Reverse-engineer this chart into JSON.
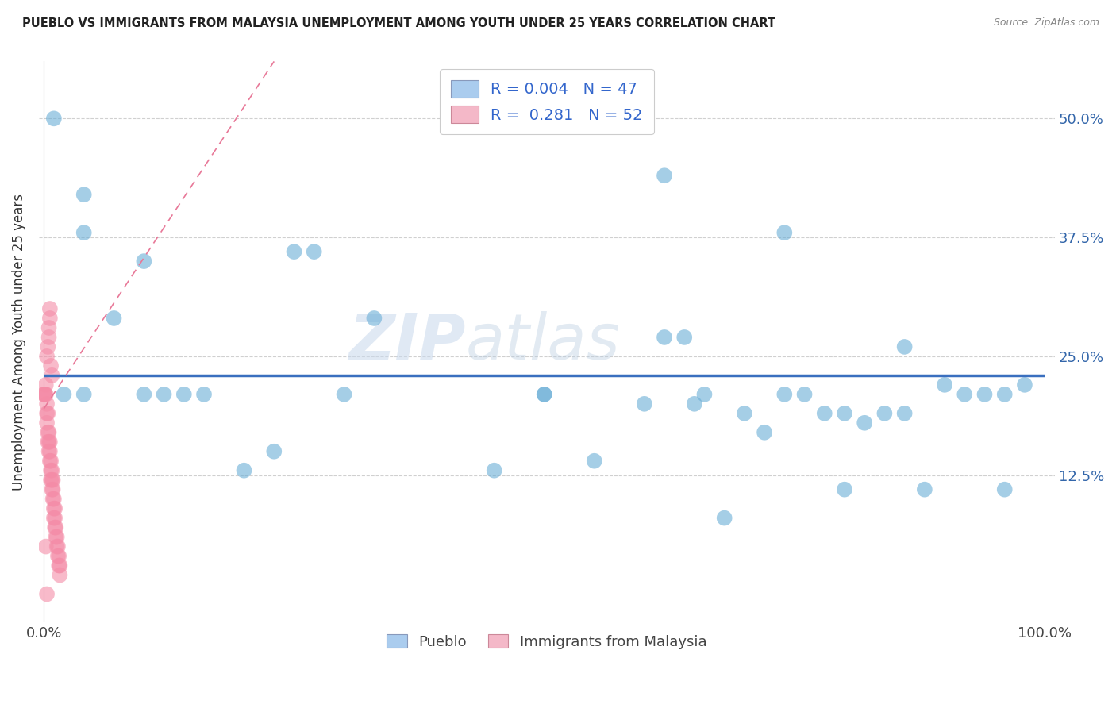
{
  "title": "PUEBLO VS IMMIGRANTS FROM MALAYSIA UNEMPLOYMENT AMONG YOUTH UNDER 25 YEARS CORRELATION CHART",
  "source": "Source: ZipAtlas.com",
  "ylabel": "Unemployment Among Youth under 25 years",
  "legend_entries": [
    {
      "label": "R = 0.004   N = 47",
      "color": "#aaccee"
    },
    {
      "label": "R =  0.281   N = 52",
      "color": "#f4b8c8"
    }
  ],
  "pueblo_pts": [
    [
      0.01,
      0.5
    ],
    [
      0.04,
      0.42
    ],
    [
      0.04,
      0.38
    ],
    [
      0.07,
      0.29
    ],
    [
      0.1,
      0.35
    ],
    [
      0.12,
      0.21
    ],
    [
      0.14,
      0.21
    ],
    [
      0.16,
      0.21
    ],
    [
      0.2,
      0.13
    ],
    [
      0.23,
      0.15
    ],
    [
      0.25,
      0.36
    ],
    [
      0.27,
      0.36
    ],
    [
      0.33,
      0.29
    ],
    [
      0.04,
      0.21
    ],
    [
      0.45,
      0.13
    ],
    [
      0.5,
      0.21
    ],
    [
      0.62,
      0.27
    ],
    [
      0.64,
      0.27
    ],
    [
      0.66,
      0.21
    ],
    [
      0.7,
      0.19
    ],
    [
      0.72,
      0.17
    ],
    [
      0.74,
      0.21
    ],
    [
      0.76,
      0.21
    ],
    [
      0.78,
      0.19
    ],
    [
      0.8,
      0.19
    ],
    [
      0.82,
      0.18
    ],
    [
      0.84,
      0.19
    ],
    [
      0.86,
      0.19
    ],
    [
      0.62,
      0.44
    ],
    [
      0.74,
      0.38
    ],
    [
      0.86,
      0.26
    ],
    [
      0.9,
      0.22
    ],
    [
      0.92,
      0.21
    ],
    [
      0.94,
      0.21
    ],
    [
      0.96,
      0.21
    ],
    [
      0.98,
      0.22
    ],
    [
      0.5,
      0.21
    ],
    [
      0.1,
      0.21
    ],
    [
      0.02,
      0.21
    ],
    [
      0.3,
      0.21
    ],
    [
      0.55,
      0.14
    ],
    [
      0.6,
      0.2
    ],
    [
      0.65,
      0.2
    ],
    [
      0.68,
      0.08
    ],
    [
      0.8,
      0.11
    ],
    [
      0.88,
      0.11
    ],
    [
      0.96,
      0.11
    ]
  ],
  "malaysia_pts": [
    [
      0.0,
      0.21
    ],
    [
      0.001,
      0.21
    ],
    [
      0.002,
      0.21
    ],
    [
      0.003,
      0.2
    ],
    [
      0.003,
      0.19
    ],
    [
      0.003,
      0.18
    ],
    [
      0.004,
      0.19
    ],
    [
      0.004,
      0.17
    ],
    [
      0.004,
      0.16
    ],
    [
      0.005,
      0.17
    ],
    [
      0.005,
      0.16
    ],
    [
      0.005,
      0.15
    ],
    [
      0.006,
      0.16
    ],
    [
      0.006,
      0.15
    ],
    [
      0.006,
      0.14
    ],
    [
      0.007,
      0.14
    ],
    [
      0.007,
      0.13
    ],
    [
      0.007,
      0.12
    ],
    [
      0.008,
      0.13
    ],
    [
      0.008,
      0.12
    ],
    [
      0.008,
      0.11
    ],
    [
      0.009,
      0.12
    ],
    [
      0.009,
      0.11
    ],
    [
      0.009,
      0.1
    ],
    [
      0.01,
      0.1
    ],
    [
      0.01,
      0.09
    ],
    [
      0.01,
      0.08
    ],
    [
      0.011,
      0.09
    ],
    [
      0.011,
      0.08
    ],
    [
      0.011,
      0.07
    ],
    [
      0.012,
      0.07
    ],
    [
      0.012,
      0.06
    ],
    [
      0.013,
      0.06
    ],
    [
      0.013,
      0.05
    ],
    [
      0.014,
      0.05
    ],
    [
      0.014,
      0.04
    ],
    [
      0.015,
      0.04
    ],
    [
      0.015,
      0.03
    ],
    [
      0.016,
      0.03
    ],
    [
      0.016,
      0.02
    ],
    [
      0.005,
      0.28
    ],
    [
      0.005,
      0.27
    ],
    [
      0.006,
      0.3
    ],
    [
      0.006,
      0.29
    ],
    [
      0.004,
      0.26
    ],
    [
      0.003,
      0.25
    ],
    [
      0.007,
      0.24
    ],
    [
      0.008,
      0.23
    ],
    [
      0.002,
      0.22
    ],
    [
      0.001,
      0.21
    ],
    [
      0.002,
      0.05
    ],
    [
      0.003,
      0.0
    ]
  ],
  "pueblo_color": "#6aaed6",
  "malaysia_color": "#f48ca7",
  "pueblo_line_color": "#3a6fbf",
  "malaysia_line_color": "#e87898",
  "watermark_zip": "ZIP",
  "watermark_atlas": "atlas",
  "bottom_legend": [
    "Pueblo",
    "Immigrants from Malaysia"
  ],
  "ytick_vals": [
    0.125,
    0.25,
    0.375,
    0.5
  ],
  "ytick_labels": [
    "12.5%",
    "25.0%",
    "37.5%",
    "50.0%"
  ],
  "xlim": [
    -0.005,
    1.01
  ],
  "ylim": [
    -0.03,
    0.56
  ]
}
